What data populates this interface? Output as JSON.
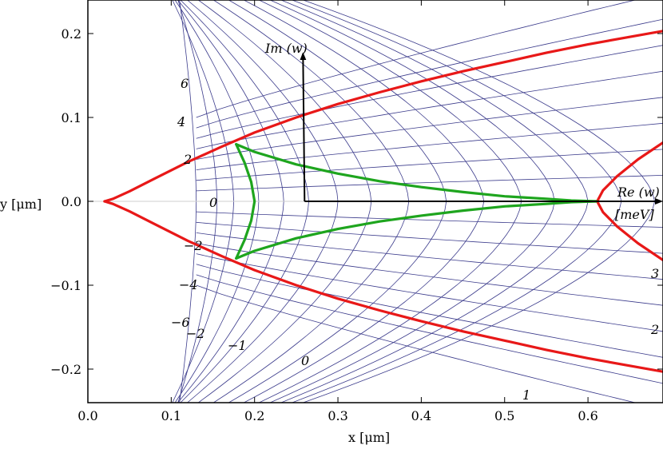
{
  "chart_data": {
    "type": "line",
    "xlabel": "x [μm]",
    "ylabel": "y [μm]",
    "xlim": [
      0.0,
      0.69
    ],
    "ylim": [
      -0.24,
      0.24
    ],
    "x_ticks": [
      "0.0",
      "0.1",
      "0.2",
      "0.3",
      "0.4",
      "0.5",
      "0.6"
    ],
    "x_tick_values": [
      0.0,
      0.1,
      0.2,
      0.3,
      0.4,
      0.5,
      0.6
    ],
    "y_ticks": [
      "0.2",
      "0.1",
      "0.0",
      "−0.1",
      "−0.2"
    ],
    "y_tick_values": [
      0.2,
      0.1,
      0.0,
      -0.1,
      -0.2
    ],
    "grid": false,
    "grid_color": "#3c3c8c",
    "series": [
      {
        "color": "#e81818",
        "x": [
          0.02,
          0.03,
          0.05,
          0.08,
          0.12,
          0.16,
          0.2,
          0.25,
          0.3,
          0.35,
          0.4,
          0.45,
          0.5,
          0.55,
          0.6,
          0.65,
          0.69
        ],
        "y": [
          0.0,
          0.003,
          0.012,
          0.027,
          0.047,
          0.065,
          0.082,
          0.1,
          0.116,
          0.13,
          0.143,
          0.155,
          0.166,
          0.177,
          0.187,
          0.196,
          0.203
        ]
      },
      {
        "color": "#e81818",
        "x": [
          0.02,
          0.03,
          0.05,
          0.08,
          0.12,
          0.16,
          0.2,
          0.25,
          0.3,
          0.35,
          0.4,
          0.45,
          0.5,
          0.55,
          0.6,
          0.65,
          0.69
        ],
        "y": [
          0.0,
          -0.003,
          -0.012,
          -0.027,
          -0.047,
          -0.065,
          -0.082,
          -0.1,
          -0.116,
          -0.13,
          -0.143,
          -0.155,
          -0.166,
          -0.177,
          -0.187,
          -0.196,
          -0.203
        ]
      },
      {
        "color": "#e81818",
        "x": [
          0.69,
          0.66,
          0.635,
          0.618,
          0.611,
          0.618,
          0.635,
          0.66,
          0.69
        ],
        "y": [
          0.07,
          0.05,
          0.03,
          0.013,
          0.0,
          -0.013,
          -0.03,
          -0.05,
          -0.07
        ]
      },
      {
        "color": "#1ea51e",
        "x": [
          0.178,
          0.2,
          0.25,
          0.3,
          0.35,
          0.4,
          0.45,
          0.5,
          0.55,
          0.58,
          0.61
        ],
        "y": [
          0.068,
          0.059,
          0.044,
          0.033,
          0.024,
          0.017,
          0.011,
          0.006,
          0.003,
          0.001,
          0.0
        ]
      },
      {
        "color": "#1ea51e",
        "x": [
          0.178,
          0.2,
          0.25,
          0.3,
          0.35,
          0.4,
          0.45,
          0.5,
          0.55,
          0.58,
          0.61
        ],
        "y": [
          -0.068,
          -0.059,
          -0.044,
          -0.033,
          -0.024,
          -0.017,
          -0.011,
          -0.006,
          -0.003,
          -0.001,
          0.0
        ]
      },
      {
        "color": "#1ea51e",
        "x": [
          0.178,
          0.188,
          0.196,
          0.2,
          0.196,
          0.188,
          0.178
        ],
        "y": [
          0.068,
          0.046,
          0.023,
          0.0,
          -0.023,
          -0.046,
          -0.068
        ]
      }
    ],
    "arrows": [
      {
        "label": "Im (w)",
        "from": [
          0.26,
          0.0
        ],
        "to": [
          0.26,
          0.176
        ]
      },
      {
        "label": "Re (w)",
        "from": [
          0.26,
          0.0
        ],
        "to": [
          0.69,
          0.0
        ]
      }
    ],
    "grid_labels": {
      "im_values": [
        "6",
        "4",
        "2",
        "0",
        "−2",
        "−4",
        "−6"
      ],
      "re_values": [
        "−2",
        "−1",
        "0",
        "1",
        "2",
        "3"
      ]
    },
    "annotations": {
      "im": "Im (w)",
      "re": "Re (w)",
      "unit": "[meV]"
    }
  }
}
